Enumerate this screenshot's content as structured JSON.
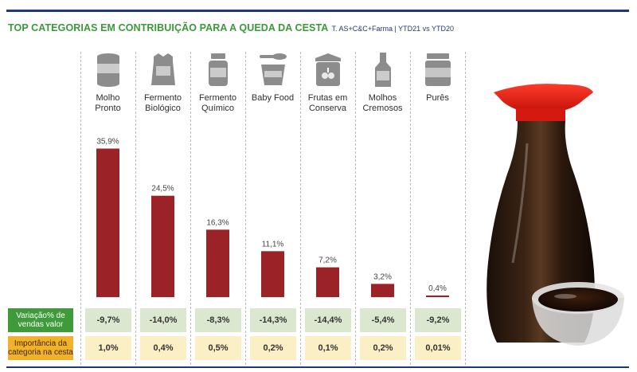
{
  "header": {
    "title": "TOP CATEGORIAS EM CONTRIBUIÇÃO PARA A QUEDA DA CESTA",
    "subtitle": "T. AS+C&C+Farma | YTD21 vs YTD20"
  },
  "categories": [
    {
      "label": "Molho\nPronto",
      "icon": "can-icon"
    },
    {
      "label": "Fermento\nBiológico",
      "icon": "bag-icon"
    },
    {
      "label": "Fermento\nQuímico",
      "icon": "jar-icon"
    },
    {
      "label": "Baby Food",
      "icon": "spoon-cup-icon"
    },
    {
      "label": "Frutas em\nConserva",
      "icon": "preserve-jar-icon"
    },
    {
      "label": "Molhos\nCremosos",
      "icon": "bottle-icon"
    },
    {
      "label": "Purês",
      "icon": "container-icon"
    }
  ],
  "rows": {
    "variacao_label": "Variação% de\nvendas valor",
    "importancia_label": "Importância da\ncategoria na cesta"
  },
  "chart_data": {
    "type": "bar",
    "categories": [
      "Molho Pronto",
      "Fermento Biológico",
      "Fermento Químico",
      "Baby Food",
      "Frutas em Conserva",
      "Molhos Cremosos",
      "Purês"
    ],
    "values": [
      35.9,
      24.5,
      16.3,
      11.1,
      7.2,
      3.2,
      0.4
    ],
    "value_labels": [
      "35,9%",
      "24,5%",
      "16,3%",
      "11,1%",
      "7,2%",
      "3,2%",
      "0,4%"
    ],
    "ylim": [
      0,
      40
    ],
    "variacao": [
      "-9,7%",
      "-14,0%",
      "-8,3%",
      "-14,3%",
      "-14,4%",
      "-5,4%",
      "-9,2%"
    ],
    "importancia": [
      "1,0%",
      "0,4%",
      "0,5%",
      "0,2%",
      "0,1%",
      "0,2%",
      "0,01%"
    ],
    "colors": {
      "bar": "#9b2226",
      "row_variacao": "#3f9b3a",
      "row_importancia": "#f1b12a"
    }
  }
}
